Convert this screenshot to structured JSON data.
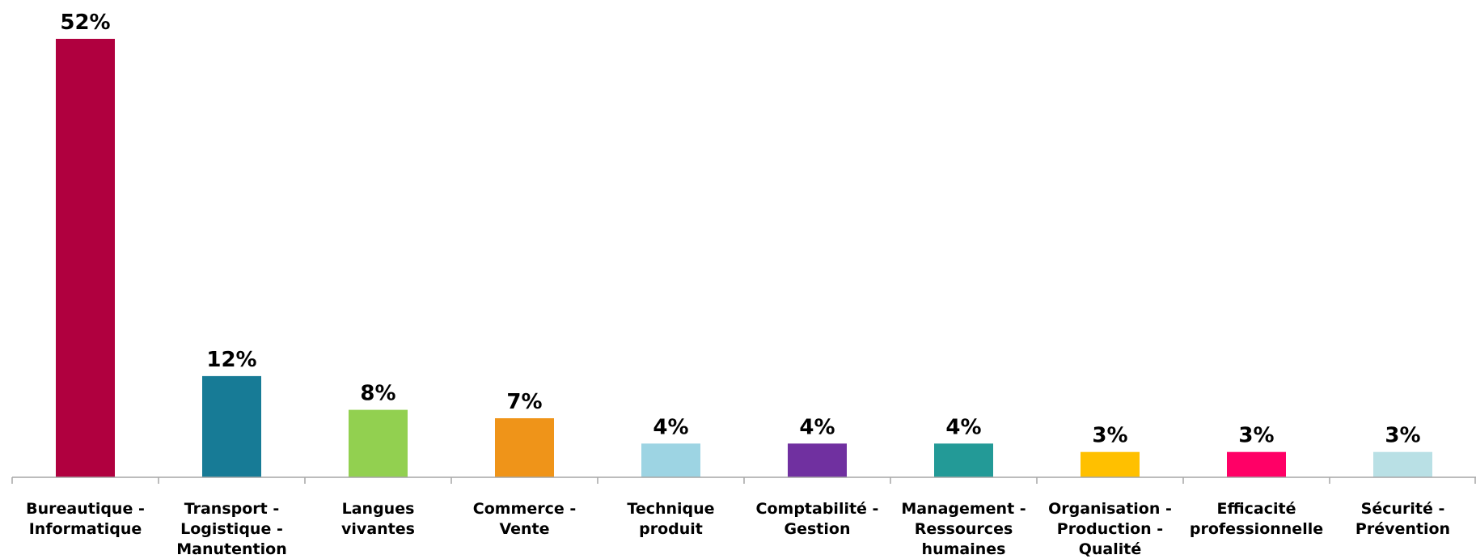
{
  "chart_data": {
    "type": "bar",
    "title": "",
    "xlabel": "",
    "ylabel": "",
    "ylim": [
      0,
      52
    ],
    "grid": false,
    "legend": "none",
    "categories": [
      [
        "Bureautique -",
        "Informatique"
      ],
      [
        "Transport -",
        "Logistique -",
        "Manutention"
      ],
      [
        "Langues",
        "vivantes"
      ],
      [
        "Commerce -",
        "Vente"
      ],
      [
        "Technique",
        "produit"
      ],
      [
        "Comptabilité -",
        "Gestion"
      ],
      [
        "Management -",
        "Ressources",
        "humaines"
      ],
      [
        "Organisation -",
        "Production -",
        "Qualité"
      ],
      [
        "Efficacité",
        "professionnelle"
      ],
      [
        "Sécurité -",
        "Prévention"
      ]
    ],
    "values": [
      52,
      12,
      8,
      7,
      4,
      4,
      4,
      3,
      3,
      3
    ],
    "value_labels": [
      "52%",
      "12%",
      "8%",
      "7%",
      "4%",
      "4%",
      "4%",
      "3%",
      "3%",
      "3%"
    ],
    "colors": [
      "#b0003f",
      "#177b96",
      "#92d050",
      "#ef9419",
      "#9dd4e3",
      "#7030a0",
      "#239a97",
      "#ffc000",
      "#ff0066",
      "#b9e0e5"
    ],
    "axis_color": "#a6a6a6"
  }
}
